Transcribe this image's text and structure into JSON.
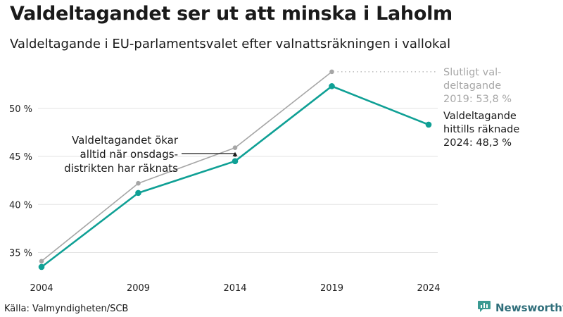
{
  "title": "Valdeltagandet ser ut att minska i Laholm",
  "subtitle": "Valdeltagande i EU-parlamentsvalet efter valnattsräkningen i vallokal",
  "source": "Källa: Valmyndigheten/SCB",
  "brand": {
    "name": "Newsworthy",
    "icon": "newsworthy-logo-icon",
    "color": "#2f6e7a"
  },
  "chart_data": {
    "type": "line",
    "title": "Valdeltagandet ser ut att minska i Laholm",
    "subtitle": "Valdeltagande i EU-parlamentsvalet efter valnattsräkningen i vallokal",
    "xlabel": "",
    "ylabel": "",
    "x": [
      "2004",
      "2009",
      "2014",
      "2019",
      "2024"
    ],
    "ylim": [
      33,
      55
    ],
    "yticks": [
      35,
      40,
      45,
      50
    ],
    "ytick_labels": [
      "35 %",
      "40 %",
      "45 %",
      "50 %"
    ],
    "grid": true,
    "legend": "none",
    "series": [
      {
        "key": "final",
        "color": "#a6a6a6",
        "values": [
          34.1,
          42.2,
          45.9,
          53.8,
          null
        ]
      },
      {
        "key": "counted",
        "color": "#0fa095",
        "values": [
          33.5,
          41.2,
          44.5,
          52.3,
          48.3
        ]
      }
    ],
    "labels": {
      "final": [
        "Slutligt val-",
        "deltagande",
        "2019: 53,8 %"
      ],
      "counted": [
        "Valdeltagande",
        "hittills räknade",
        "2024: 48,3 %"
      ]
    },
    "annotation": [
      "Valdeltagandet ökar",
      "alltid när onsdags-",
      "distrikten har räknats"
    ]
  }
}
